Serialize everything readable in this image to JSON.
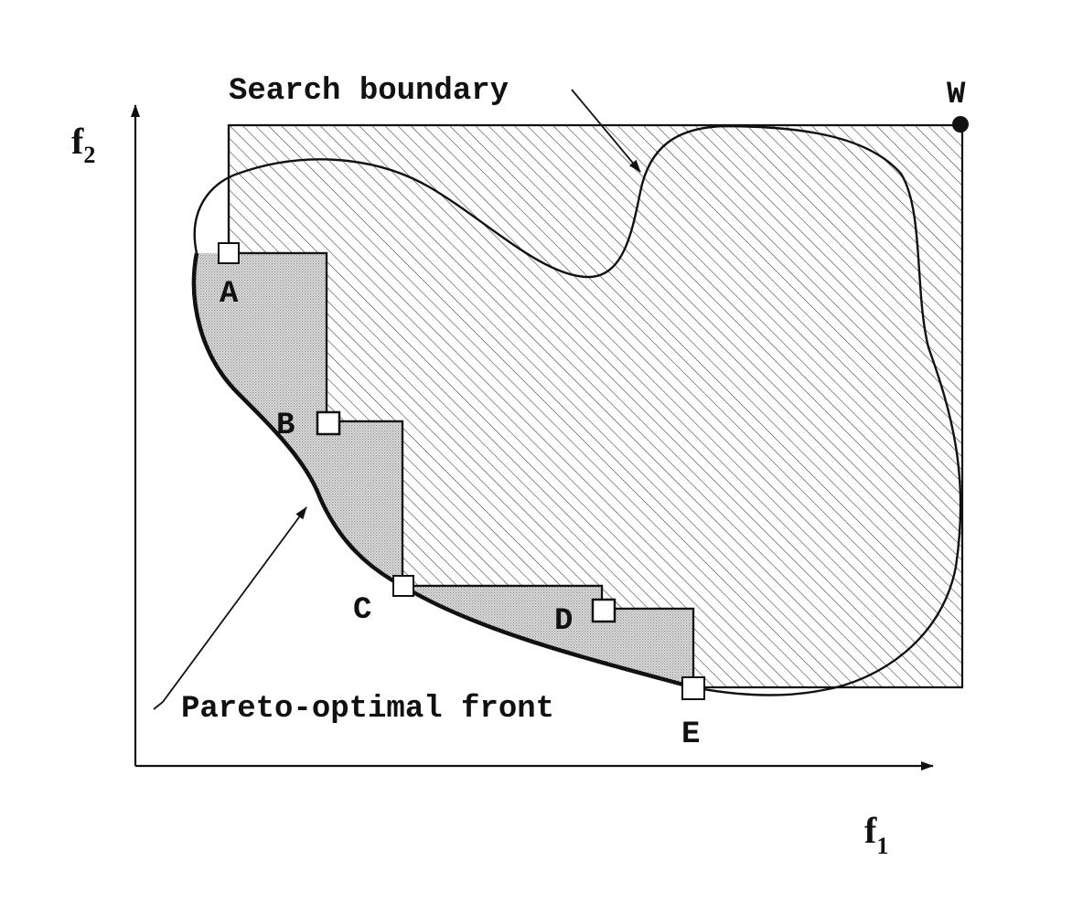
{
  "axes": {
    "x_label": "f",
    "x_subscript": "1",
    "y_label": "f",
    "y_subscript": "2"
  },
  "annotations": {
    "search_boundary": "Search boundary",
    "pareto_front": "Pareto-optimal front"
  },
  "points": [
    {
      "id": "A",
      "label": "A"
    },
    {
      "id": "B",
      "label": "B"
    },
    {
      "id": "C",
      "label": "C"
    },
    {
      "id": "D",
      "label": "D"
    },
    {
      "id": "E",
      "label": "E"
    },
    {
      "id": "W",
      "label": "W"
    }
  ],
  "colors": {
    "ink": "#111111",
    "dominated_region_shade": "#bdbdbd",
    "hatch": "#333333"
  }
}
